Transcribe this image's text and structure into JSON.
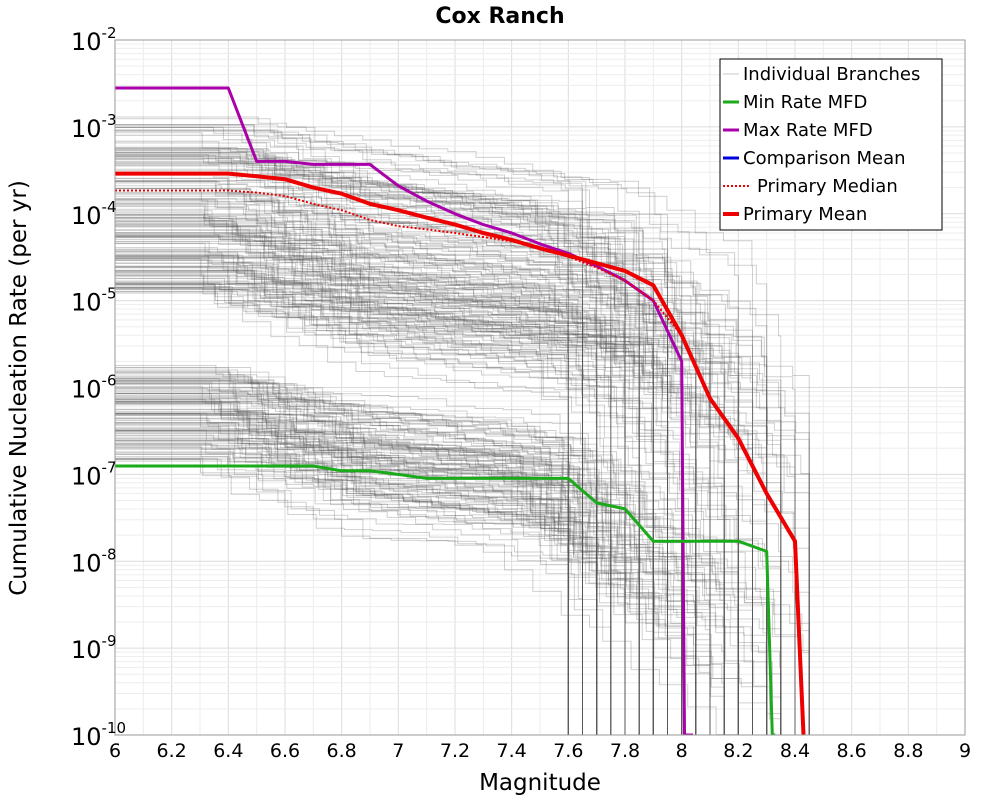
{
  "chart_data": {
    "type": "line",
    "title": "Cox Ranch",
    "xlabel": "Magnitude",
    "ylabel": "Cumulative Nucleation Rate (per yr)",
    "xlim": [
      6,
      9
    ],
    "ylim": [
      1e-10,
      0.01
    ],
    "y_scale": "log",
    "grid": true,
    "legend_position": "top-right",
    "x_ticks": [
      "6",
      "6.2",
      "6.4",
      "6.6",
      "6.8",
      "7",
      "7.2",
      "7.4",
      "7.6",
      "7.8",
      "8",
      "8.2",
      "8.4",
      "8.6",
      "8.8",
      "9"
    ],
    "y_ticks": [
      {
        "value": 1e-10,
        "base": "10",
        "exp": "-10"
      },
      {
        "value": 1e-09,
        "base": "10",
        "exp": "-9"
      },
      {
        "value": 1e-08,
        "base": "10",
        "exp": "-8"
      },
      {
        "value": 1e-07,
        "base": "10",
        "exp": "-7"
      },
      {
        "value": 1e-06,
        "base": "10",
        "exp": "-6"
      },
      {
        "value": 1e-05,
        "base": "10",
        "exp": "-5"
      },
      {
        "value": 0.0001,
        "base": "10",
        "exp": "-4"
      },
      {
        "value": 0.001,
        "base": "10",
        "exp": "-3"
      },
      {
        "value": 0.01,
        "base": "10",
        "exp": "-2"
      }
    ],
    "legend": [
      {
        "label": "Individual Branches",
        "color": "#c8c8c8",
        "style": "thin"
      },
      {
        "label": "Min Rate MFD",
        "color": "#1aaa1a",
        "style": "solid"
      },
      {
        "label": "Max Rate MFD",
        "color": "#aa00aa",
        "style": "solid"
      },
      {
        "label": "Comparison Mean",
        "color": "#0000dd",
        "style": "solid"
      },
      {
        "label": "Primary Median",
        "color": "#ee0000",
        "style": "dotted"
      },
      {
        "label": "Primary Mean",
        "color": "#ee0000",
        "style": "thick"
      }
    ],
    "series": [
      {
        "name": "Max Rate MFD",
        "color": "#aa00aa",
        "x": [
          6.0,
          6.4,
          6.5,
          6.6,
          6.7,
          6.8,
          6.9,
          7.0,
          7.1,
          7.2,
          7.3,
          7.4,
          7.5,
          7.6,
          7.7,
          7.8,
          7.9,
          8.0,
          8.01,
          8.04
        ],
        "y": [
          0.0028,
          0.0028,
          0.0004,
          0.0004,
          0.00037,
          0.00037,
          0.00037,
          0.00021,
          0.00014,
          0.0001,
          7.5e-05,
          6e-05,
          4.5e-05,
          3.5e-05,
          2.5e-05,
          1.7e-05,
          1e-05,
          2e-06,
          1e-10,
          1e-10
        ]
      },
      {
        "name": "Min Rate MFD",
        "color": "#1aaa1a",
        "x": [
          6.0,
          6.7,
          6.8,
          6.9,
          7.0,
          7.1,
          7.2,
          7.3,
          7.4,
          7.5,
          7.6,
          7.7,
          7.8,
          7.9,
          8.0,
          8.1,
          8.2,
          8.3,
          8.32,
          8.33
        ],
        "y": [
          1.25e-07,
          1.25e-07,
          1.1e-07,
          1.1e-07,
          1e-07,
          9e-08,
          9e-08,
          9e-08,
          9e-08,
          9e-08,
          9e-08,
          4.7e-08,
          4e-08,
          1.7e-08,
          1.7e-08,
          1.7e-08,
          1.7e-08,
          1.3e-08,
          1e-10,
          1e-10
        ]
      },
      {
        "name": "Primary Median",
        "color": "#ee0000",
        "x": [
          6.0,
          6.4,
          6.5,
          6.6,
          6.7,
          6.8,
          6.9,
          7.0,
          7.1,
          7.2,
          7.3,
          7.4,
          7.5,
          7.6,
          7.7,
          7.8,
          7.9,
          8.0
        ],
        "y": [
          0.000185,
          0.000185,
          0.000175,
          0.00016,
          0.00013,
          0.00011,
          8.5e-05,
          7.2e-05,
          6.6e-05,
          6e-05,
          5.4e-05,
          4.8e-05,
          4e-05,
          3.2e-05,
          2.4e-05,
          1.7e-05,
          1e-05,
          4e-06
        ]
      },
      {
        "name": "Primary Mean",
        "color": "#ee0000",
        "x": [
          6.0,
          6.4,
          6.5,
          6.6,
          6.7,
          6.8,
          6.9,
          7.0,
          7.1,
          7.2,
          7.3,
          7.4,
          7.5,
          7.6,
          7.7,
          7.8,
          7.9,
          8.0,
          8.1,
          8.2,
          8.3,
          8.4,
          8.43
        ],
        "y": [
          0.00029,
          0.00029,
          0.00027,
          0.00025,
          0.0002,
          0.00017,
          0.00013,
          0.00011,
          9e-05,
          7.5e-05,
          6e-05,
          5e-05,
          4e-05,
          3.3e-05,
          2.7e-05,
          2.2e-05,
          1.5e-05,
          4e-06,
          7.5e-07,
          2.6e-07,
          6e-08,
          1.7e-08,
          1e-10
        ]
      }
    ]
  }
}
